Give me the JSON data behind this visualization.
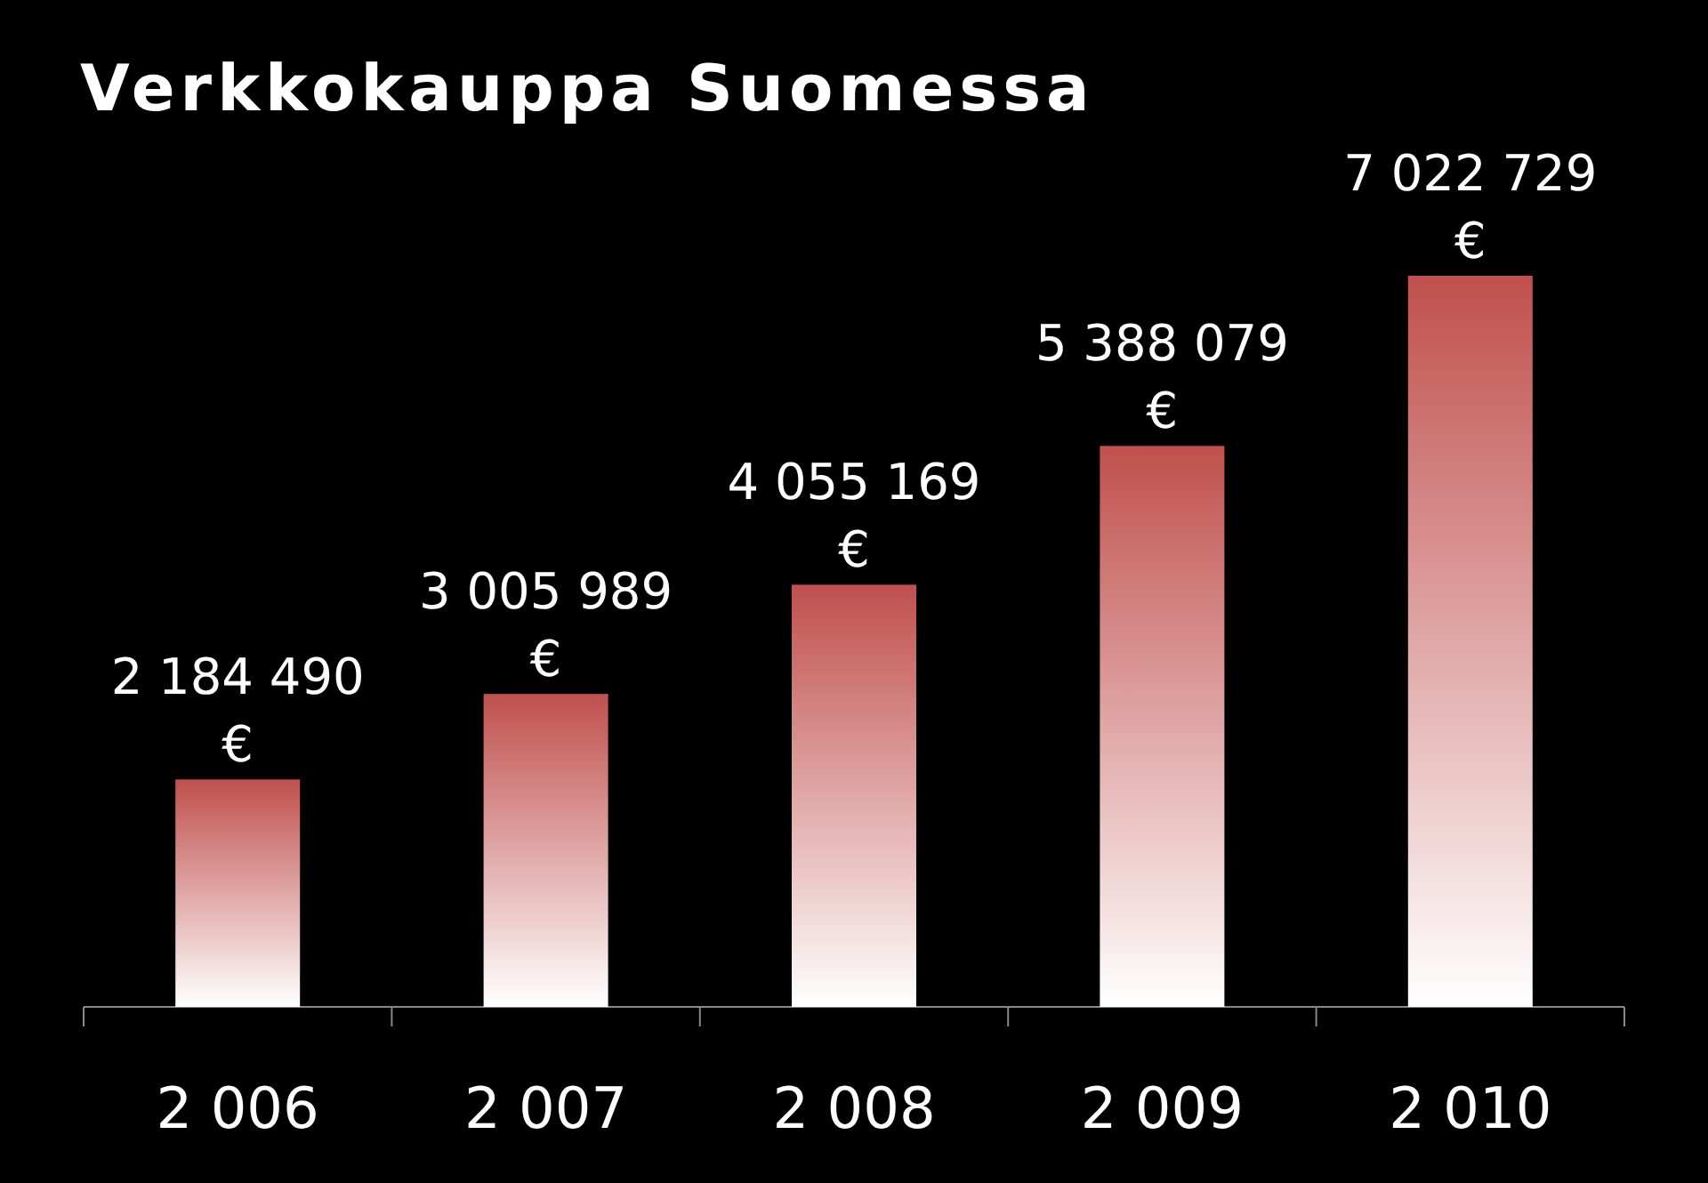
{
  "chart_data": {
    "type": "bar",
    "title": "Verkkokauppa Suomessa",
    "categories": [
      "2 006",
      "2 007",
      "2 008",
      "2 009",
      "2 010"
    ],
    "values": [
      2184490,
      3005989,
      4055169,
      5388079,
      7022729
    ],
    "value_labels": [
      "2 184 490 €",
      "3 005 989 €",
      "4 055 169 €",
      "5 388 079 €",
      "7 022 729 €"
    ],
    "color": "#c0504d"
  }
}
